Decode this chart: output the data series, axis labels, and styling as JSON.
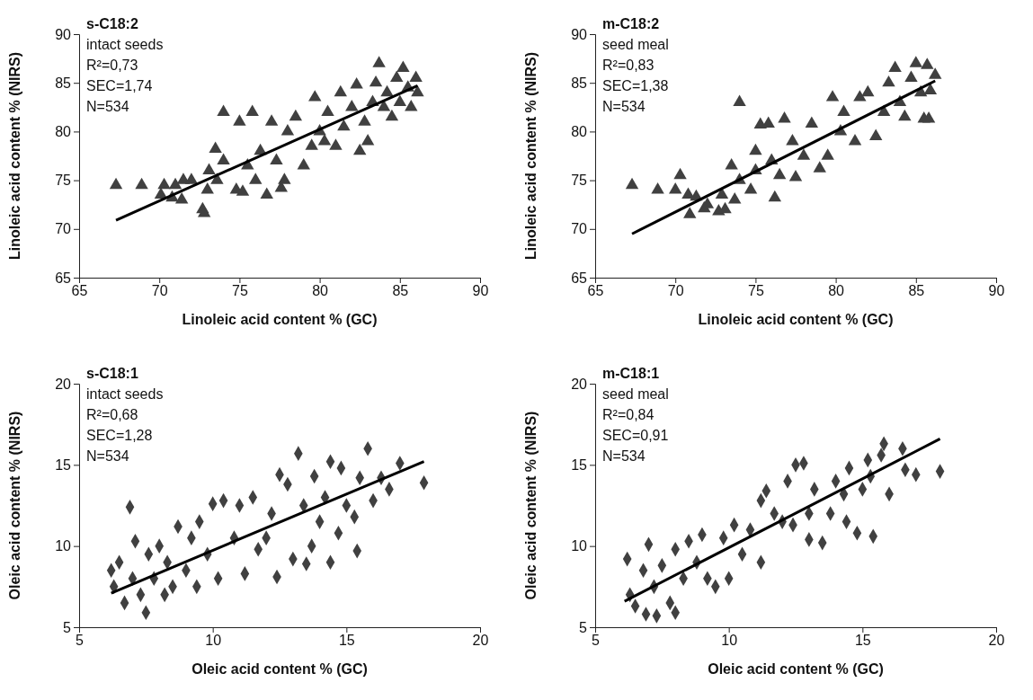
{
  "chart_data": [
    {
      "type": "scatter",
      "title": "s-C18:2",
      "annotations": [
        "intact seeds",
        "R²=0,73",
        "SEC=1,74",
        "N=534"
      ],
      "xlabel": "Linoleic acid content % (GC)",
      "ylabel": "Linoleic acid content % (NIRS)",
      "xlim": [
        65,
        90
      ],
      "ylim": [
        65,
        90
      ],
      "xticks": [
        65,
        70,
        75,
        80,
        85,
        90
      ],
      "yticks": [
        65,
        70,
        75,
        80,
        85,
        90
      ],
      "series": [
        {
          "type": "scatter",
          "marker": "triangle",
          "color": "#404040",
          "x": [
            67.3,
            68.9,
            70.1,
            70.3,
            70.8,
            71,
            71.4,
            71.5,
            72,
            72.7,
            72.8,
            73,
            73.1,
            73.5,
            73.6,
            74,
            74,
            74.8,
            75,
            75.2,
            75.5,
            75.8,
            76,
            76.3,
            76.7,
            77,
            77.3,
            77.6,
            77.8,
            78,
            78.5,
            79,
            79.5,
            79.7,
            80,
            80.3,
            80.5,
            81,
            81.3,
            81.5,
            82,
            82.3,
            82.5,
            82.8,
            83,
            83.3,
            83.5,
            83.7,
            84,
            84.2,
            84.5,
            84.8,
            85,
            85.2,
            85.5,
            85.7,
            86,
            86.1
          ],
          "values": [
            74.5,
            74.5,
            73.5,
            74.5,
            73.2,
            74.5,
            73,
            75,
            75,
            72,
            71.6,
            74,
            76,
            78.2,
            75,
            82,
            77,
            74,
            81,
            73.8,
            76.5,
            82,
            75,
            78,
            73.5,
            81,
            77,
            74.2,
            75,
            80,
            81.5,
            76.5,
            78.5,
            83.5,
            80,
            79,
            82,
            78.5,
            84,
            80.5,
            82.5,
            84.8,
            78,
            81,
            79,
            83,
            85,
            87,
            82.5,
            84,
            81.5,
            85.5,
            83,
            86.5,
            84.5,
            82.5,
            85.5,
            84
          ]
        },
        {
          "type": "line",
          "marker": "none",
          "color": "#000000",
          "x": [
            67.3,
            86.1
          ],
          "values": [
            70.9,
            84.7
          ]
        }
      ]
    },
    {
      "type": "scatter",
      "title": "m-C18:2",
      "annotations": [
        "seed meal",
        "R²=0,83",
        "SEC=1,38",
        "N=534"
      ],
      "xlabel": "Linoleic acid content % (GC)",
      "ylabel": "Linoleic acid content % (NIRS)",
      "xlim": [
        65,
        90
      ],
      "ylim": [
        65,
        90
      ],
      "xticks": [
        65,
        70,
        75,
        80,
        85,
        90
      ],
      "yticks": [
        65,
        70,
        75,
        80,
        85,
        90
      ],
      "series": [
        {
          "type": "scatter",
          "marker": "triangle",
          "color": "#404040",
          "x": [
            67.3,
            68.9,
            70,
            70.3,
            70.8,
            70.9,
            71.3,
            71.8,
            72,
            72.7,
            72.9,
            73.1,
            73.5,
            73.7,
            74,
            74,
            74.7,
            75,
            75,
            75.3,
            75.8,
            76,
            76.2,
            76.5,
            76.8,
            77.3,
            77.5,
            78,
            78.5,
            79,
            79.5,
            79.8,
            80.3,
            80.5,
            81.2,
            81.5,
            82,
            82.5,
            83,
            83.3,
            83.7,
            84,
            84.3,
            84.7,
            85,
            85.3,
            85.5,
            85.8,
            85.7,
            85.9,
            86.2
          ],
          "values": [
            74.5,
            74,
            74,
            75.5,
            73.5,
            71.5,
            73.3,
            72.1,
            72.5,
            71.8,
            73.5,
            72,
            76.5,
            73,
            83,
            75,
            74,
            78,
            76,
            80.7,
            80.8,
            77,
            73.2,
            75.5,
            81.3,
            79,
            75.3,
            77.5,
            80.8,
            76.2,
            77.5,
            83.5,
            80,
            82,
            79,
            83.5,
            84,
            79.5,
            82,
            85,
            86.5,
            83,
            81.5,
            85.5,
            87,
            84,
            81.3,
            81.3,
            86.8,
            84.2,
            85.8
          ]
        },
        {
          "type": "line",
          "marker": "none",
          "color": "#000000",
          "x": [
            67.3,
            86.2
          ],
          "values": [
            69.5,
            85.2
          ]
        }
      ]
    },
    {
      "type": "scatter",
      "title": "s-C18:1",
      "annotations": [
        "intact seeds",
        "R²=0,68",
        "SEC=1,28",
        "N=534"
      ],
      "xlabel": "Oleic acid content % (GC)",
      "ylabel": "Oleic acid content % (NIRS)",
      "xlim": [
        5,
        20
      ],
      "ylim": [
        5,
        20
      ],
      "xticks": [
        5,
        10,
        15,
        20
      ],
      "yticks": [
        5,
        10,
        15,
        20
      ],
      "series": [
        {
          "type": "scatter",
          "marker": "diamond",
          "color": "#404040",
          "x": [
            6.2,
            6.3,
            6.5,
            6.7,
            6.9,
            7,
            7.1,
            7.3,
            7.5,
            7.6,
            7.8,
            8,
            8.2,
            8.3,
            8.5,
            8.7,
            9,
            9.2,
            9.4,
            9.5,
            9.8,
            10,
            10.2,
            10.4,
            10.8,
            11,
            11.2,
            11.5,
            11.7,
            12,
            12.2,
            12.4,
            12.5,
            12.8,
            13,
            13.2,
            13.4,
            13.5,
            13.7,
            13.8,
            14,
            14.2,
            14.4,
            14.4,
            14.7,
            14.8,
            15,
            15.3,
            15.4,
            15.5,
            15.8,
            16,
            16.3,
            16.6,
            17,
            17.9
          ],
          "values": [
            8.5,
            7.5,
            9,
            6.5,
            12.4,
            8,
            10.3,
            7,
            5.9,
            9.5,
            8,
            10,
            7,
            9,
            7.5,
            11.2,
            8.5,
            10.5,
            7.5,
            11.5,
            9.5,
            12.6,
            8,
            12.8,
            10.5,
            12.5,
            8.3,
            13,
            9.8,
            10.5,
            12,
            8.1,
            14.4,
            13.8,
            9.2,
            15.7,
            12.5,
            8.9,
            10,
            14.3,
            11.5,
            13,
            15.2,
            9,
            10.8,
            14.8,
            12.5,
            11.8,
            9.7,
            14.2,
            16,
            12.8,
            14.2,
            13.5,
            15.1,
            13.9
          ]
        },
        {
          "type": "line",
          "marker": "none",
          "color": "#000000",
          "x": [
            6.2,
            17.9
          ],
          "values": [
            7.1,
            15.2
          ]
        }
      ]
    },
    {
      "type": "scatter",
      "title": "m-C18:1",
      "annotations": [
        "seed meal",
        "R²=0,84",
        "SEC=0,91",
        "N=534"
      ],
      "xlabel": "Oleic acid content % (GC)",
      "ylabel": "Oleic acid content % (NIRS)",
      "xlim": [
        5,
        20
      ],
      "ylim": [
        5,
        20
      ],
      "xticks": [
        5,
        10,
        15,
        20
      ],
      "yticks": [
        5,
        10,
        15,
        20
      ],
      "series": [
        {
          "type": "scatter",
          "marker": "diamond",
          "color": "#404040",
          "x": [
            6.2,
            6.3,
            6.5,
            6.8,
            6.9,
            7,
            7.2,
            7.3,
            7.5,
            7.8,
            8,
            8,
            8.3,
            8.5,
            8.8,
            9,
            9.2,
            9.5,
            9.8,
            10,
            10.2,
            10.5,
            10.8,
            11.2,
            11.2,
            11.4,
            11.7,
            12,
            12.2,
            12.4,
            12.5,
            12.8,
            13,
            13,
            13.2,
            13.5,
            13.8,
            14,
            14.3,
            14.4,
            14.5,
            14.8,
            15,
            15.2,
            15.3,
            15.4,
            15.7,
            15.8,
            16,
            16.5,
            16.6,
            17,
            17.9
          ],
          "values": [
            9.2,
            7,
            6.3,
            8.5,
            5.8,
            10.1,
            7.5,
            5.7,
            8.8,
            6.5,
            5.9,
            9.8,
            8,
            10.3,
            9,
            10.7,
            8,
            7.5,
            10.5,
            8,
            11.3,
            9.5,
            11,
            12.8,
            9,
            13.4,
            12,
            11.5,
            14,
            11.3,
            15,
            15.1,
            12,
            10.4,
            13.5,
            10.2,
            12,
            14,
            13.2,
            11.5,
            14.8,
            10.8,
            13.5,
            15.3,
            14.3,
            10.6,
            15.6,
            16.3,
            13.2,
            16,
            14.7,
            14.4,
            14.6
          ]
        },
        {
          "type": "line",
          "marker": "none",
          "color": "#000000",
          "x": [
            6.1,
            17.9
          ],
          "values": [
            6.6,
            16.6
          ]
        }
      ]
    }
  ]
}
